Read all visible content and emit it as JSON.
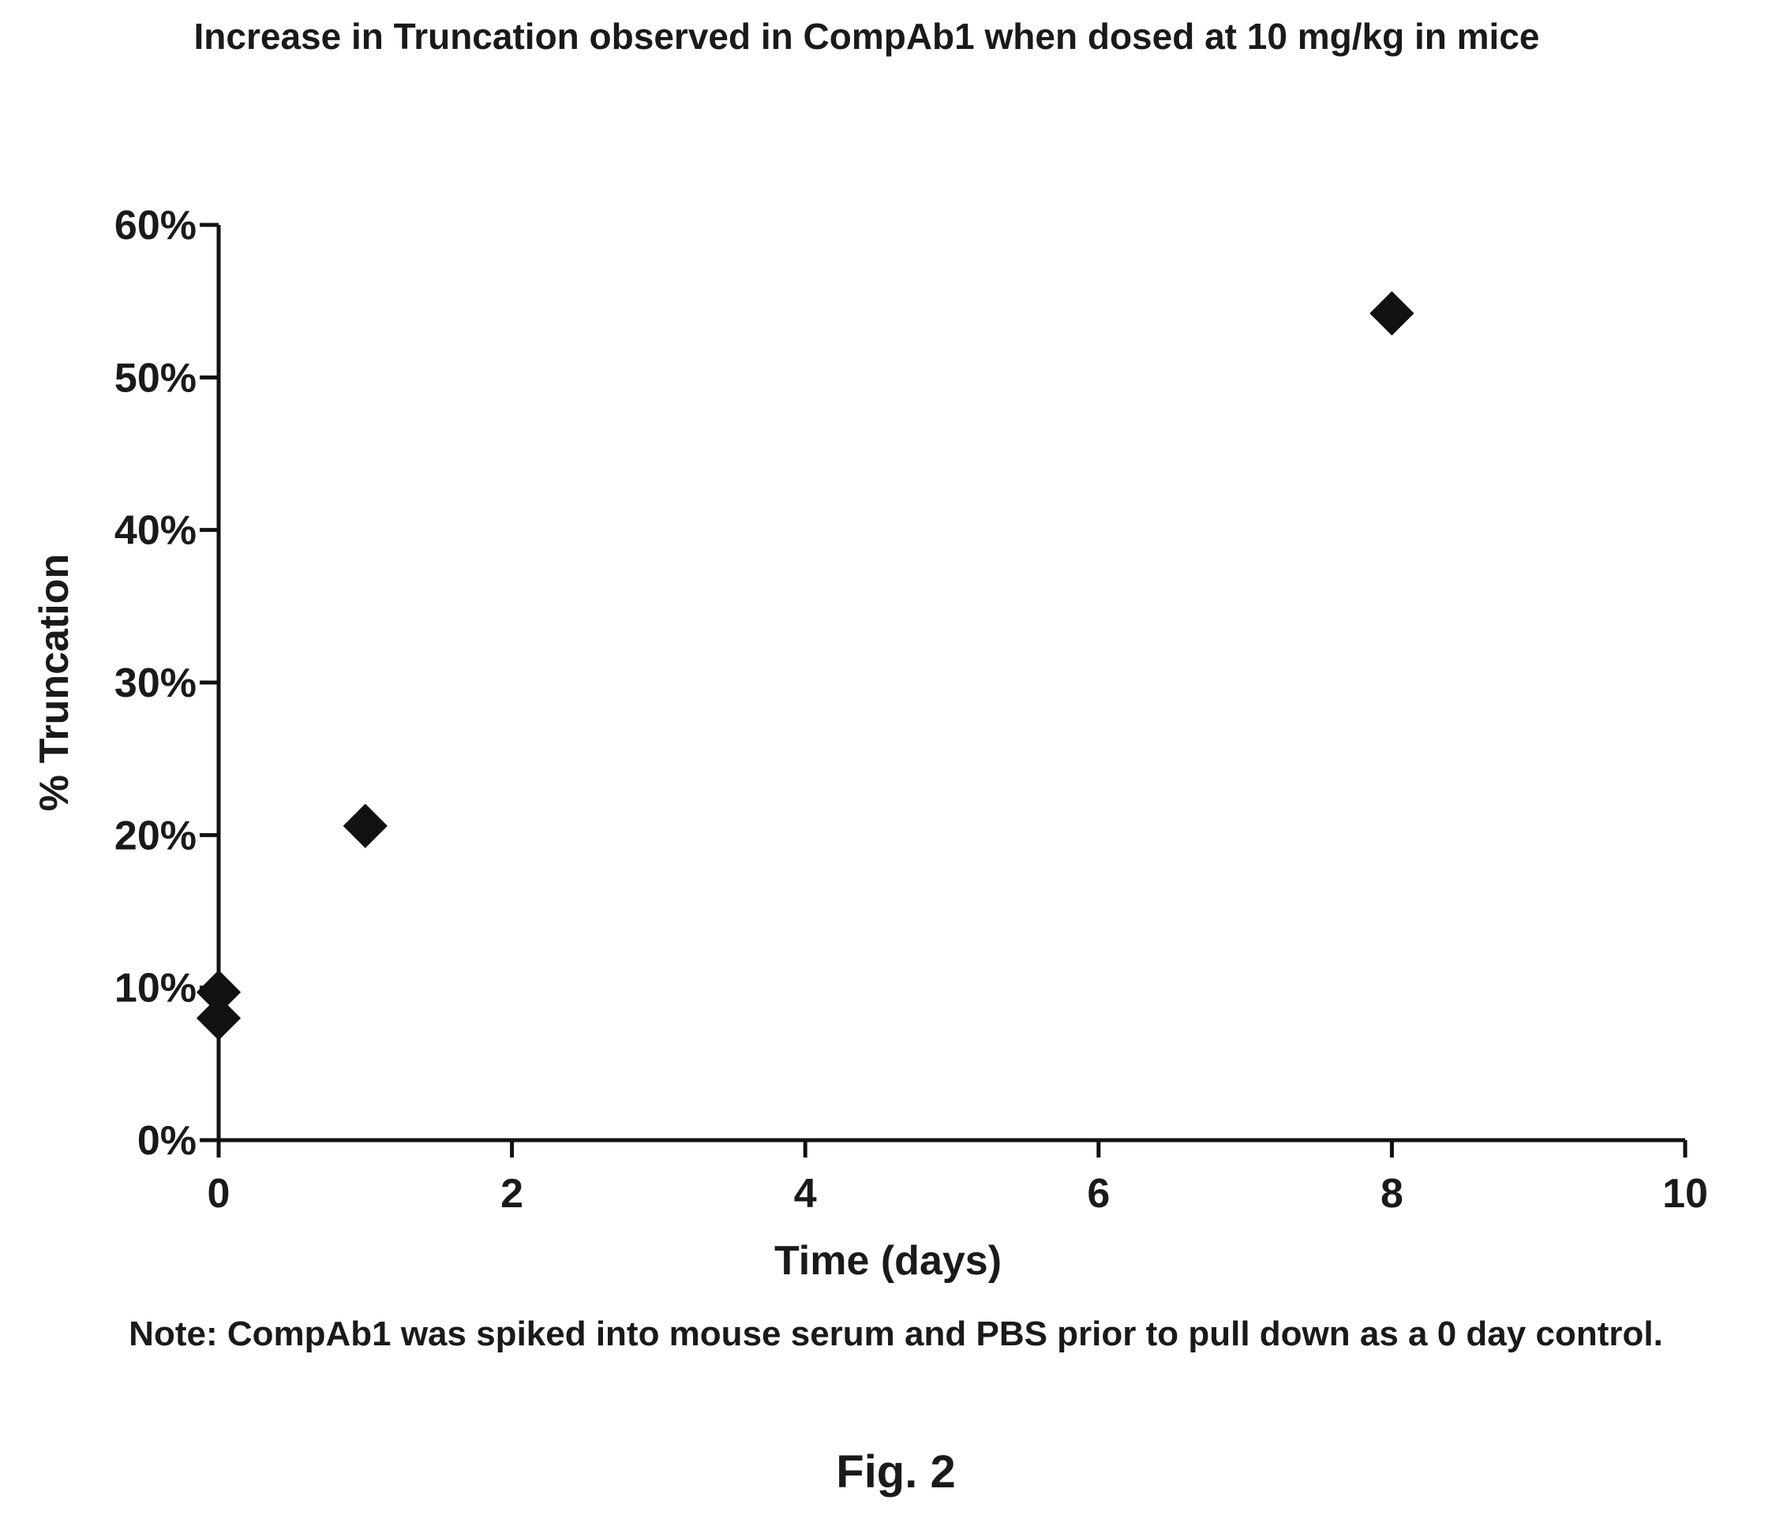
{
  "chart_data": {
    "type": "scatter",
    "title": "Increase in Truncation observed in CompAb1 when dosed at 10 mg/kg in mice",
    "xlabel": "Time (days)",
    "ylabel": "% Truncation",
    "xlim": [
      0,
      10
    ],
    "ylim": [
      0,
      0.6
    ],
    "x_ticks": [
      0,
      2,
      4,
      6,
      8,
      10
    ],
    "x_tick_labels": [
      "0",
      "2",
      "4",
      "6",
      "8",
      "10"
    ],
    "y_ticks": [
      0,
      0.1,
      0.2,
      0.3,
      0.4,
      0.5,
      0.6
    ],
    "y_tick_labels": [
      "0%",
      "10%",
      "20%",
      "30%",
      "40%",
      "50%",
      "60%"
    ],
    "grid": false,
    "marker": "diamond",
    "marker_color": "#111111",
    "series": [
      {
        "points": [
          {
            "x": 0,
            "y": 0.08
          },
          {
            "x": 0,
            "y": 0.097
          },
          {
            "x": 1,
            "y": 0.206
          },
          {
            "x": 8,
            "y": 0.542
          }
        ]
      }
    ]
  },
  "note": "Note: CompAb1 was spiked into mouse serum and PBS prior to pull down as a 0 day control.",
  "figure_label": "Fig. 2"
}
